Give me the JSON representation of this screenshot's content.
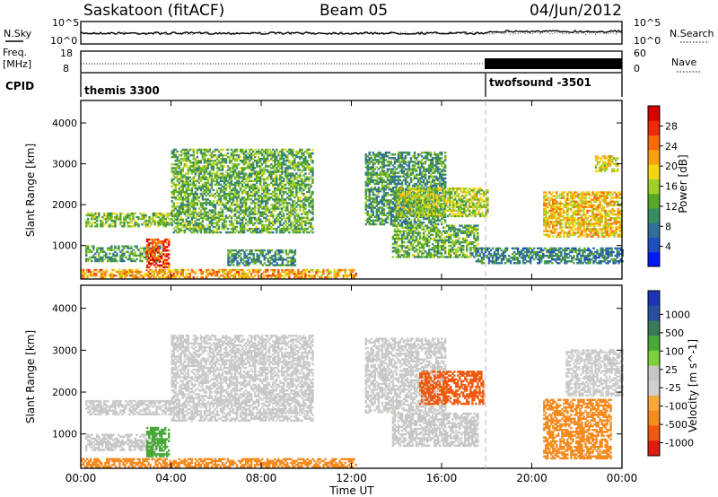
{
  "header": {
    "station": "Saskatoon (fitACF)",
    "beam": "Beam 05",
    "date": "04/Jun/2012"
  },
  "panels": {
    "nsky": {
      "left_label": "N.Sky",
      "left_ticks": [
        "10^5",
        "10^0"
      ],
      "right_ticks": [
        "10^5",
        "10^0"
      ],
      "right_label": "N.Search"
    },
    "freq": {
      "left_label_1": "Freq.",
      "left_label_2": "[MHz]",
      "left_ticks": [
        "18",
        "8"
      ],
      "right_ticks": [
        "60",
        "0"
      ],
      "right_label": "Nave"
    },
    "cpid": {
      "label": "CPID",
      "segments": [
        "themis 3300",
        "twofsound -3501"
      ]
    }
  },
  "colors": {
    "power": [
      "#0018ff",
      "#1d4fc0",
      "#2f6f9a",
      "#3a8c62",
      "#5aa82a",
      "#9fd02a",
      "#f4d60f",
      "#f8a10c",
      "#f66a0a",
      "#ef2a08",
      "#d60000"
    ],
    "velocity": [
      "#e11b0f",
      "#ef5a10",
      "#f58a1f",
      "#f7a83a",
      "#cfcfcb",
      "#c6c6c2",
      "#7fcf3a",
      "#4aa838",
      "#3a7a58",
      "#2a4fa0",
      "#1d35b5"
    ]
  },
  "chart_data": [
    {
      "type": "heatmap",
      "title": "",
      "xlabel": "Time UT",
      "ylabel": "Slant Range [km]",
      "colorbar_label": "Power [dB]",
      "x_ticks": [
        "00:00",
        "04:00",
        "08:00",
        "12:00",
        "16:00",
        "20:00",
        "00:00"
      ],
      "y_ticks": [
        "1000",
        "2000",
        "3000",
        "4000"
      ],
      "ylim": [
        180,
        4550
      ],
      "colorbar_ticks": [
        "4",
        "8",
        "12",
        "16",
        "20",
        "24",
        "28"
      ],
      "colorbar_range": [
        0,
        32
      ],
      "grid": false,
      "echo_bands": [
        {
          "t0": 0.2,
          "t1": 4.0,
          "r0": 1450,
          "r1": 1780,
          "v": 14
        },
        {
          "t0": 0.2,
          "t1": 3.5,
          "r0": 600,
          "r1": 1000,
          "v": 12
        },
        {
          "t0": 0.0,
          "t1": 12.2,
          "r0": 200,
          "r1": 420,
          "v": 22
        },
        {
          "t0": 2.9,
          "t1": 3.9,
          "r0": 450,
          "r1": 1150,
          "v": 27
        },
        {
          "t0": 4.0,
          "t1": 10.3,
          "r0": 1300,
          "r1": 3350,
          "v": 13
        },
        {
          "t0": 6.5,
          "t1": 9.5,
          "r0": 500,
          "r1": 900,
          "v": 10
        },
        {
          "t0": 12.6,
          "t1": 16.2,
          "r0": 1500,
          "r1": 3300,
          "v": 11
        },
        {
          "t0": 14.0,
          "t1": 18.0,
          "r0": 1700,
          "r1": 2400,
          "v": 16
        },
        {
          "t0": 13.8,
          "t1": 17.6,
          "r0": 700,
          "r1": 1500,
          "v": 13
        },
        {
          "t0": 17.5,
          "t1": 24.0,
          "r0": 550,
          "r1": 950,
          "v": 9
        },
        {
          "t0": 20.5,
          "t1": 24.0,
          "r0": 1200,
          "r1": 2300,
          "v": 20
        },
        {
          "t0": 22.8,
          "t1": 23.8,
          "r0": 2800,
          "r1": 3200,
          "v": 18
        }
      ]
    },
    {
      "type": "heatmap",
      "title": "",
      "xlabel": "Time UT",
      "ylabel": "Slant Range [km]",
      "colorbar_label": "Velocity [m s^-1]",
      "x_ticks": [
        "00:00",
        "04:00",
        "08:00",
        "12:00",
        "16:00",
        "20:00",
        "00:00"
      ],
      "y_ticks": [
        "1000",
        "2000",
        "3000",
        "4000"
      ],
      "ylim": [
        180,
        4550
      ],
      "colorbar_ticks": [
        "1000",
        "500",
        "100",
        "25",
        "-25",
        "-100",
        "-500",
        "-1000"
      ],
      "grid": false,
      "echo_bands": [
        {
          "t0": 0.2,
          "t1": 4.0,
          "r0": 1450,
          "r1": 1780,
          "v": 0
        },
        {
          "t0": 0.2,
          "t1": 3.5,
          "r0": 600,
          "r1": 1000,
          "v": 10
        },
        {
          "t0": 0.0,
          "t1": 12.2,
          "r0": 200,
          "r1": 420,
          "v": -150
        },
        {
          "t0": 2.9,
          "t1": 3.9,
          "r0": 450,
          "r1": 1150,
          "v": 150
        },
        {
          "t0": 4.0,
          "t1": 10.3,
          "r0": 1300,
          "r1": 3350,
          "v": 0
        },
        {
          "t0": 12.6,
          "t1": 16.2,
          "r0": 1500,
          "r1": 3300,
          "v": 0
        },
        {
          "t0": 15.0,
          "t1": 17.8,
          "r0": 1700,
          "r1": 2500,
          "v": -700
        },
        {
          "t0": 13.8,
          "t1": 17.6,
          "r0": 700,
          "r1": 1500,
          "v": 5
        },
        {
          "t0": 20.5,
          "t1": 23.5,
          "r0": 400,
          "r1": 1800,
          "v": -250
        },
        {
          "t0": 21.5,
          "t1": 24.0,
          "r0": 1900,
          "r1": 3000,
          "v": 0
        }
      ]
    }
  ]
}
